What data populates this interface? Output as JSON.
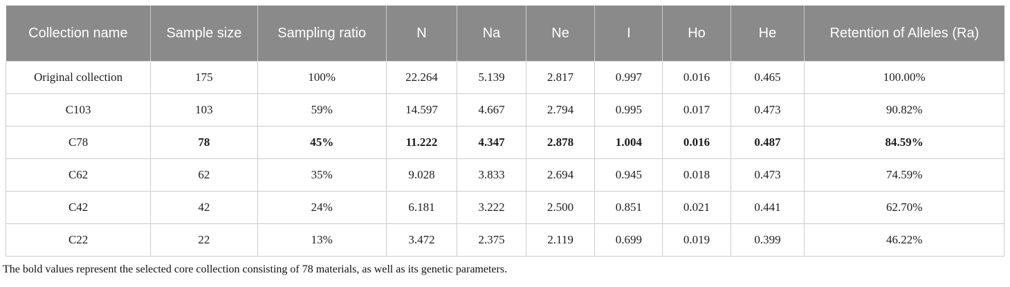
{
  "table": {
    "columns": [
      {
        "key": "collection-name",
        "label": "Collection name",
        "width": "14.5%"
      },
      {
        "key": "sample-size",
        "label": "Sample size",
        "width": "10.7%"
      },
      {
        "key": "sampling-ratio",
        "label": "Sampling ratio",
        "width": "12.9%"
      },
      {
        "key": "n",
        "label": "N",
        "width": "7.1%"
      },
      {
        "key": "na",
        "label": "Na",
        "width": "6.9%"
      },
      {
        "key": "ne",
        "label": "Ne",
        "width": "6.9%"
      },
      {
        "key": "i",
        "label": "I",
        "width": "6.8%"
      },
      {
        "key": "ho",
        "label": "Ho",
        "width": "6.8%"
      },
      {
        "key": "he",
        "label": "He",
        "width": "7.4%"
      },
      {
        "key": "retention",
        "label": "Retention of Alleles (Ra)",
        "width": "20.0%"
      }
    ],
    "rows": [
      {
        "cells": [
          "Original collection",
          "175",
          "100%",
          "22.264",
          "5.139",
          "2.817",
          "0.997",
          "0.016",
          "0.465",
          "100.00%"
        ],
        "bold_values": false
      },
      {
        "cells": [
          "C103",
          "103",
          "59%",
          "14.597",
          "4.667",
          "2.794",
          "0.995",
          "0.017",
          "0.473",
          "90.82%"
        ],
        "bold_values": false
      },
      {
        "cells": [
          "C78",
          "78",
          "45%",
          "11.222",
          "4.347",
          "2.878",
          "1.004",
          "0.016",
          "0.487",
          "84.59%"
        ],
        "bold_values": true
      },
      {
        "cells": [
          "C62",
          "62",
          "35%",
          "9.028",
          "3.833",
          "2.694",
          "0.945",
          "0.018",
          "0.473",
          "74.59%"
        ],
        "bold_values": false
      },
      {
        "cells": [
          "C42",
          "42",
          "24%",
          "6.181",
          "3.222",
          "2.500",
          "0.851",
          "0.021",
          "0.441",
          "62.70%"
        ],
        "bold_values": false
      },
      {
        "cells": [
          "C22",
          "22",
          "13%",
          "3.472",
          "2.375",
          "2.119",
          "0.699",
          "0.019",
          "0.399",
          "46.22%"
        ],
        "bold_values": false
      }
    ]
  },
  "footnote": "The bold values represent the selected core collection consisting of 78 materials, as well as its genetic parameters.",
  "colors": {
    "header_bg": "#8a8a8a",
    "header_text": "#ffffff",
    "body_border": "#cccccc",
    "body_text": "#1c1c1c"
  }
}
